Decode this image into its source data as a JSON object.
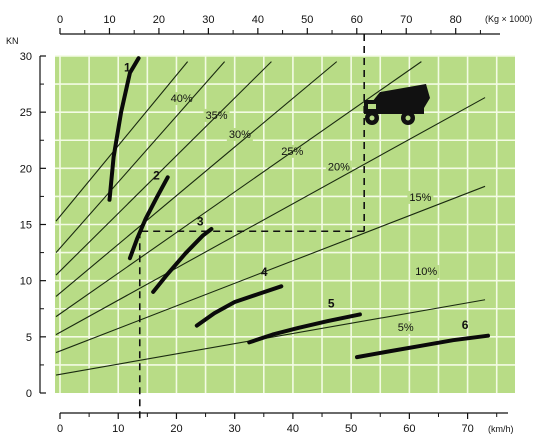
{
  "chart_data": {
    "type": "line",
    "title": "",
    "top_axis": {
      "label": "(Kg × 1000)",
      "ticks": [
        "0",
        "10",
        "20",
        "30",
        "40",
        "50",
        "60",
        "70",
        "80"
      ],
      "range": [
        0,
        93
      ]
    },
    "x_axis": {
      "label": "(km/h)",
      "ticks": [
        "0",
        "10",
        "20",
        "30",
        "40",
        "50",
        "60",
        "70"
      ],
      "range": [
        0,
        79
      ]
    },
    "y_axis": {
      "label": "KN",
      "ticks": [
        "0",
        "5",
        "10",
        "15",
        "20",
        "25",
        "30"
      ],
      "range": [
        0,
        30
      ]
    },
    "grid": true,
    "background_color": "#b8dc86",
    "grid_color": "#f3fbe4",
    "grade_lines": [
      {
        "label": "40%",
        "x": [
          0,
          73
        ],
        "y": [
          15.3,
          62.6
        ],
        "label_at": [
          19,
          25.9
        ]
      },
      {
        "label": "35%",
        "x": [
          0,
          73
        ],
        "y": [
          12.5,
          56.4
        ],
        "label_at": [
          25,
          24.4
        ]
      },
      {
        "label": "30%",
        "x": [
          0,
          73
        ],
        "y": [
          10.5,
          48.7
        ],
        "label_at": [
          29,
          22.7
        ]
      },
      {
        "label": "25%",
        "x": [
          0,
          73
        ],
        "y": [
          8.6,
          40.7
        ],
        "label_at": [
          38,
          21.2
        ]
      },
      {
        "label": "20%",
        "x": [
          0,
          73
        ],
        "y": [
          6.8,
          33.5
        ],
        "label_at": [
          46,
          19.8
        ]
      },
      {
        "label": "15%",
        "x": [
          0,
          73
        ],
        "y": [
          5.2,
          26.3
        ],
        "label_at": [
          60,
          17.1
        ]
      },
      {
        "label": "10%",
        "x": [
          0,
          73
        ],
        "y": [
          3.6,
          18.4
        ],
        "label_at": [
          61,
          10.5
        ]
      },
      {
        "label": "5%",
        "x": [
          0,
          73
        ],
        "y": [
          1.6,
          8.3
        ],
        "label_at": [
          58,
          5.5
        ]
      }
    ],
    "series": [
      {
        "name": "1",
        "x": [
          8.5,
          9.2,
          10.5,
          12.0,
          13.5
        ],
        "y": [
          17.2,
          21.0,
          25.0,
          28.5,
          29.8
        ],
        "label_at": [
          11.0,
          28.6
        ]
      },
      {
        "name": "2",
        "x": [
          12.0,
          13.3,
          14.7,
          16.5,
          18.5
        ],
        "y": [
          12.0,
          13.8,
          15.5,
          17.3,
          19.2
        ],
        "label_at": [
          16.0,
          19.0
        ]
      },
      {
        "name": "3",
        "x": [
          16.0,
          18.5,
          21.5,
          24.5,
          26.0
        ],
        "y": [
          9.0,
          10.6,
          12.4,
          14.0,
          14.6
        ],
        "label_at": [
          23.5,
          14.9
        ]
      },
      {
        "name": "4",
        "x": [
          23.5,
          26.5,
          30.0,
          34.0,
          38.0
        ],
        "y": [
          6.0,
          7.1,
          8.1,
          8.8,
          9.5
        ],
        "label_at": [
          34.5,
          10.4
        ]
      },
      {
        "name": "5",
        "x": [
          32.5,
          36.5,
          41.0,
          46.0,
          51.5
        ],
        "y": [
          4.5,
          5.2,
          5.8,
          6.4,
          7.0
        ],
        "label_at": [
          46.0,
          7.6
        ]
      },
      {
        "name": "6",
        "x": [
          51.0,
          56.5,
          62.0,
          67.5,
          73.5
        ],
        "y": [
          3.2,
          3.7,
          4.2,
          4.7,
          5.1
        ],
        "label_at": [
          69.0,
          5.7
        ]
      }
    ],
    "example_path": {
      "weight": 61.5,
      "grade_y": 14.4,
      "speed_x": 13.7
    }
  },
  "icons": {
    "truck": "dump-truck-icon"
  }
}
